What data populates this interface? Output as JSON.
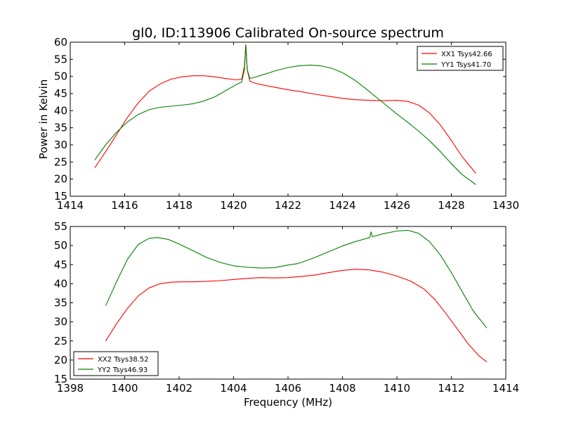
{
  "title": "gl0, ID:113906 Calibrated On-source spectrum",
  "colors": {
    "red": "#ff0000",
    "green": "#008000",
    "axis": "#000000",
    "background": "#ffffff"
  },
  "chart_data": [
    {
      "type": "line",
      "title": "gl0, ID:113906 Calibrated On-source spectrum",
      "xlabel": "",
      "ylabel": "Power in Kelvin",
      "xlim": [
        1414,
        1430
      ],
      "ylim": [
        15,
        60
      ],
      "xticks": [
        1414,
        1416,
        1418,
        1420,
        1422,
        1424,
        1426,
        1428,
        1430
      ],
      "yticks": [
        15,
        20,
        25,
        30,
        35,
        40,
        45,
        50,
        55,
        60
      ],
      "grid": false,
      "legend_position": "top-right",
      "series": [
        {
          "name": "XX1 Tsys42.66",
          "color": "#ff0000",
          "x": [
            1414.9,
            1415.3,
            1415.7,
            1416.1,
            1416.5,
            1416.9,
            1417.3,
            1417.7,
            1418.1,
            1418.5,
            1418.9,
            1419.3,
            1419.7,
            1420.1,
            1420.3,
            1420.4,
            1420.45,
            1420.5,
            1420.6,
            1420.8,
            1421.2,
            1421.6,
            1422.0,
            1422.5,
            1423.0,
            1423.5,
            1424.0,
            1424.5,
            1425.0,
            1425.5,
            1426.0,
            1426.4,
            1426.8,
            1427.2,
            1427.6,
            1428.0,
            1428.4,
            1428.9
          ],
          "y": [
            23.3,
            28.0,
            33.0,
            38.0,
            42.3,
            45.7,
            47.8,
            49.2,
            49.9,
            50.2,
            50.2,
            49.9,
            49.4,
            49.0,
            49.2,
            53.0,
            59.2,
            52.0,
            48.6,
            48.0,
            47.3,
            46.7,
            46.1,
            45.5,
            44.8,
            44.2,
            43.6,
            43.2,
            43.0,
            42.9,
            43.0,
            42.7,
            41.6,
            39.3,
            35.8,
            31.3,
            26.5,
            21.7
          ]
        },
        {
          "name": "YY1 Tsys41.70",
          "color": "#008000",
          "x": [
            1414.9,
            1415.3,
            1415.7,
            1416.1,
            1416.5,
            1416.9,
            1417.3,
            1417.7,
            1418.1,
            1418.5,
            1418.9,
            1419.3,
            1419.7,
            1420.1,
            1420.3,
            1420.4,
            1420.45,
            1420.5,
            1420.6,
            1420.8,
            1421.2,
            1421.6,
            1422.0,
            1422.4,
            1422.8,
            1423.2,
            1423.6,
            1424.0,
            1424.4,
            1424.8,
            1425.2,
            1425.6,
            1426.0,
            1426.4,
            1426.8,
            1427.2,
            1427.6,
            1428.0,
            1428.4,
            1428.9
          ],
          "y": [
            25.6,
            30.0,
            33.7,
            36.7,
            38.9,
            40.3,
            41.0,
            41.3,
            41.6,
            42.0,
            42.8,
            44.0,
            45.8,
            47.6,
            48.4,
            52.0,
            59.3,
            52.0,
            49.4,
            49.8,
            50.8,
            51.8,
            52.6,
            53.1,
            53.3,
            53.1,
            52.4,
            51.1,
            49.2,
            46.8,
            44.2,
            41.6,
            39.0,
            36.6,
            34.0,
            31.2,
            28.0,
            24.5,
            21.3,
            18.4
          ]
        }
      ]
    },
    {
      "type": "line",
      "title": "",
      "xlabel": "Frequency (MHz)",
      "ylabel": "",
      "xlim": [
        1398,
        1414
      ],
      "ylim": [
        15,
        55
      ],
      "xticks": [
        1398,
        1400,
        1402,
        1404,
        1406,
        1408,
        1410,
        1412,
        1414
      ],
      "yticks": [
        15,
        20,
        25,
        30,
        35,
        40,
        45,
        50,
        55
      ],
      "grid": false,
      "legend_position": "bottom-left",
      "series": [
        {
          "name": "XX2 Tsys38.52",
          "color": "#ff0000",
          "x": [
            1399.3,
            1399.7,
            1400.1,
            1400.5,
            1400.9,
            1401.3,
            1401.7,
            1402.1,
            1402.5,
            1403.0,
            1403.5,
            1404.0,
            1404.5,
            1405.0,
            1405.5,
            1406.0,
            1406.5,
            1407.0,
            1407.5,
            1408.0,
            1408.5,
            1409.0,
            1409.5,
            1410.0,
            1410.5,
            1411.0,
            1411.4,
            1411.8,
            1412.2,
            1412.6,
            1413.0,
            1413.3
          ],
          "y": [
            25.0,
            29.5,
            33.5,
            36.8,
            38.9,
            40.0,
            40.4,
            40.5,
            40.5,
            40.6,
            40.8,
            41.1,
            41.4,
            41.6,
            41.5,
            41.6,
            41.9,
            42.3,
            42.9,
            43.5,
            43.8,
            43.6,
            43.0,
            42.0,
            40.7,
            38.6,
            35.8,
            32.2,
            28.3,
            24.4,
            21.2,
            19.5
          ]
        },
        {
          "name": "YY2 Tsys46.93",
          "color": "#008000",
          "x": [
            1399.3,
            1399.7,
            1400.1,
            1400.5,
            1400.9,
            1401.2,
            1401.6,
            1402.0,
            1402.5,
            1403.0,
            1403.5,
            1404.0,
            1404.5,
            1405.0,
            1405.5,
            1406.0,
            1406.3,
            1406.5,
            1407.0,
            1407.5,
            1408.0,
            1408.5,
            1409.0,
            1409.05,
            1409.1,
            1409.5,
            1410.0,
            1410.4,
            1410.8,
            1411.2,
            1411.6,
            1412.0,
            1412.4,
            1412.8,
            1413.3
          ],
          "y": [
            34.2,
            40.5,
            46.4,
            50.3,
            51.9,
            52.1,
            51.6,
            50.4,
            48.7,
            46.9,
            45.6,
            44.7,
            44.3,
            44.1,
            44.2,
            44.9,
            45.2,
            45.6,
            46.9,
            48.4,
            49.9,
            51.1,
            52.1,
            53.6,
            52.3,
            53.1,
            53.8,
            54.0,
            53.2,
            51.0,
            47.5,
            42.9,
            37.9,
            32.9,
            28.4
          ]
        }
      ]
    }
  ]
}
